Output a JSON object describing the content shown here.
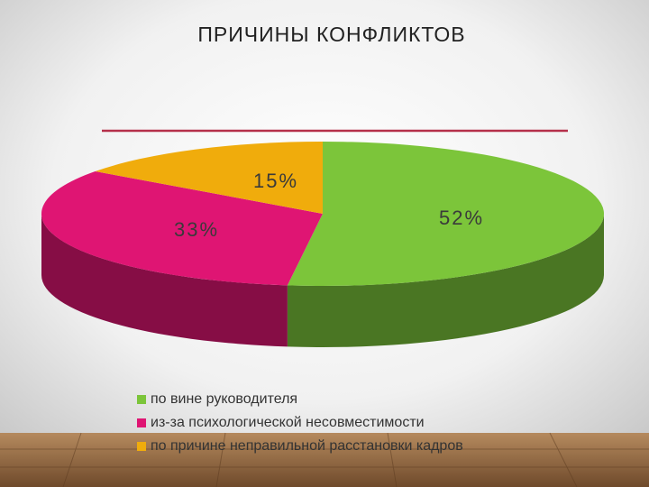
{
  "chart_data": {
    "type": "pie",
    "title": "ПРИЧИНЫ КОНФЛИКТОВ",
    "categories": [
      "по вине руководителя",
      "из-за психологической несовместимости",
      "по причине неправильной расстановки кадров"
    ],
    "values": [
      52,
      33,
      15
    ],
    "value_labels": [
      "52%",
      "33%",
      "15%"
    ],
    "colors": [
      "#7cc53a",
      "#df1573",
      "#f0ac0c"
    ],
    "legend": "bottom"
  }
}
